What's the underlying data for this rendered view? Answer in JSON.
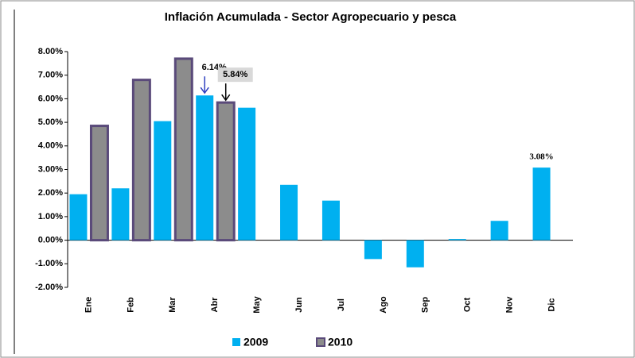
{
  "chart_data": {
    "type": "bar",
    "title": "Inflación Acumulada - Sector Agropecuario y pesca",
    "categories": [
      "Ene",
      "Feb",
      "Mar",
      "Abr",
      "May",
      "Jun",
      "Jul",
      "Ago",
      "Sep",
      "Oct",
      "Nov",
      "Dic"
    ],
    "series": [
      {
        "name": "2009",
        "color": "#00b0f0",
        "values": [
          1.95,
          2.2,
          5.05,
          6.14,
          5.62,
          2.35,
          1.68,
          -0.8,
          -1.15,
          0.05,
          0.82,
          3.08
        ],
        "value_labels": [
          null,
          null,
          null,
          "6.14%",
          null,
          null,
          null,
          null,
          null,
          null,
          null,
          "3.08%"
        ]
      },
      {
        "name": "2010",
        "color": "#8c8c8c",
        "values": [
          4.85,
          6.8,
          7.7,
          5.84,
          null,
          null,
          null,
          null,
          null,
          null,
          null,
          null
        ],
        "value_labels": [
          null,
          null,
          null,
          "5.84%",
          null,
          null,
          null,
          null,
          null,
          null,
          null,
          null
        ]
      }
    ],
    "ylim": [
      -2,
      8
    ],
    "yticks": [
      {
        "value": -2,
        "label": "-2.00%"
      },
      {
        "value": -1,
        "label": "-1.00%"
      },
      {
        "value": 0,
        "label": "0.00%"
      },
      {
        "value": 1,
        "label": "1.00%"
      },
      {
        "value": 2,
        "label": "2.00%"
      },
      {
        "value": 3,
        "label": "3.00%"
      },
      {
        "value": 4,
        "label": "4.00%"
      },
      {
        "value": 5,
        "label": "5.00%"
      },
      {
        "value": 6,
        "label": "6.00%"
      },
      {
        "value": 7,
        "label": "7.00%"
      },
      {
        "value": 8,
        "label": "8.00%"
      }
    ],
    "grid": false,
    "legend": "bottom"
  }
}
